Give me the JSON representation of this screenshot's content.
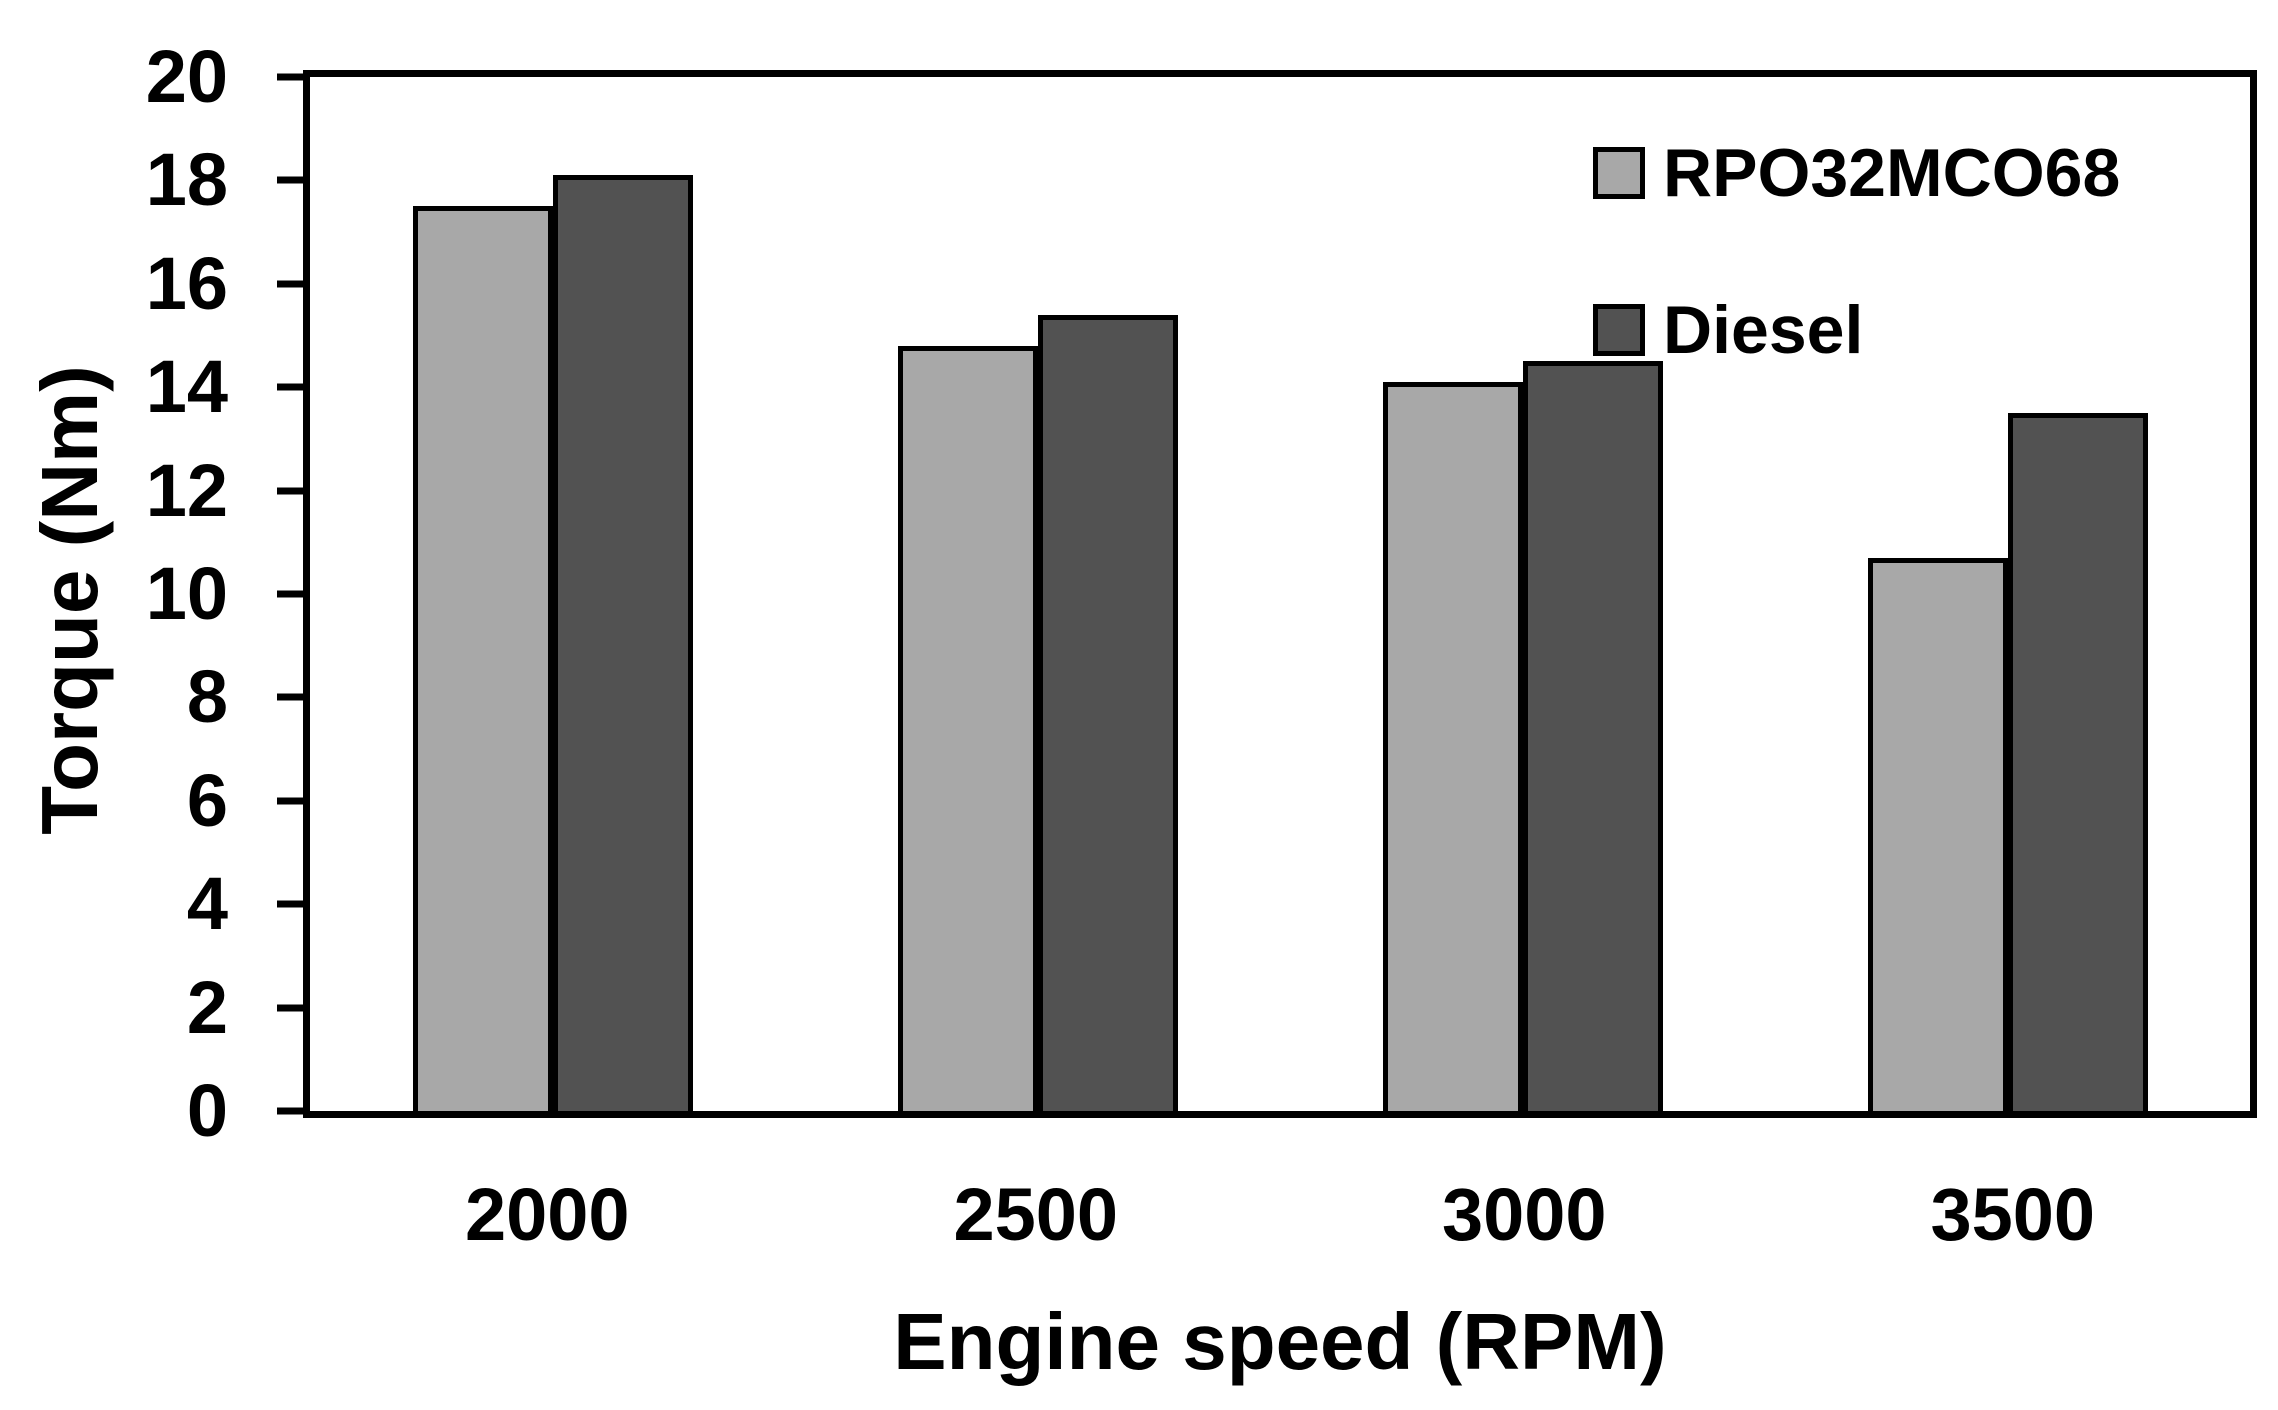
{
  "figure": {
    "background": "#ffffff",
    "axis_color": "#000000",
    "bar_outline_color": "#000000"
  },
  "chart_data": {
    "type": "bar",
    "title": "",
    "xlabel": "Engine speed (RPM)",
    "ylabel": "Torque (Nm)",
    "categories": [
      "2000",
      "2500",
      "3000",
      "3500"
    ],
    "series": [
      {
        "name": "RPO32MCO68",
        "color": "#a8a8a8",
        "values": [
          17.5,
          14.8,
          14.1,
          10.7
        ]
      },
      {
        "name": "Diesel",
        "color": "#525252",
        "values": [
          18.1,
          15.4,
          14.5,
          13.5
        ]
      }
    ],
    "ylim": [
      0,
      20
    ],
    "yticks": [
      0,
      2,
      4,
      6,
      8,
      10,
      12,
      14,
      16,
      18,
      20
    ],
    "grid": false,
    "legend_position": "top-right-inside",
    "plot_border": true
  }
}
